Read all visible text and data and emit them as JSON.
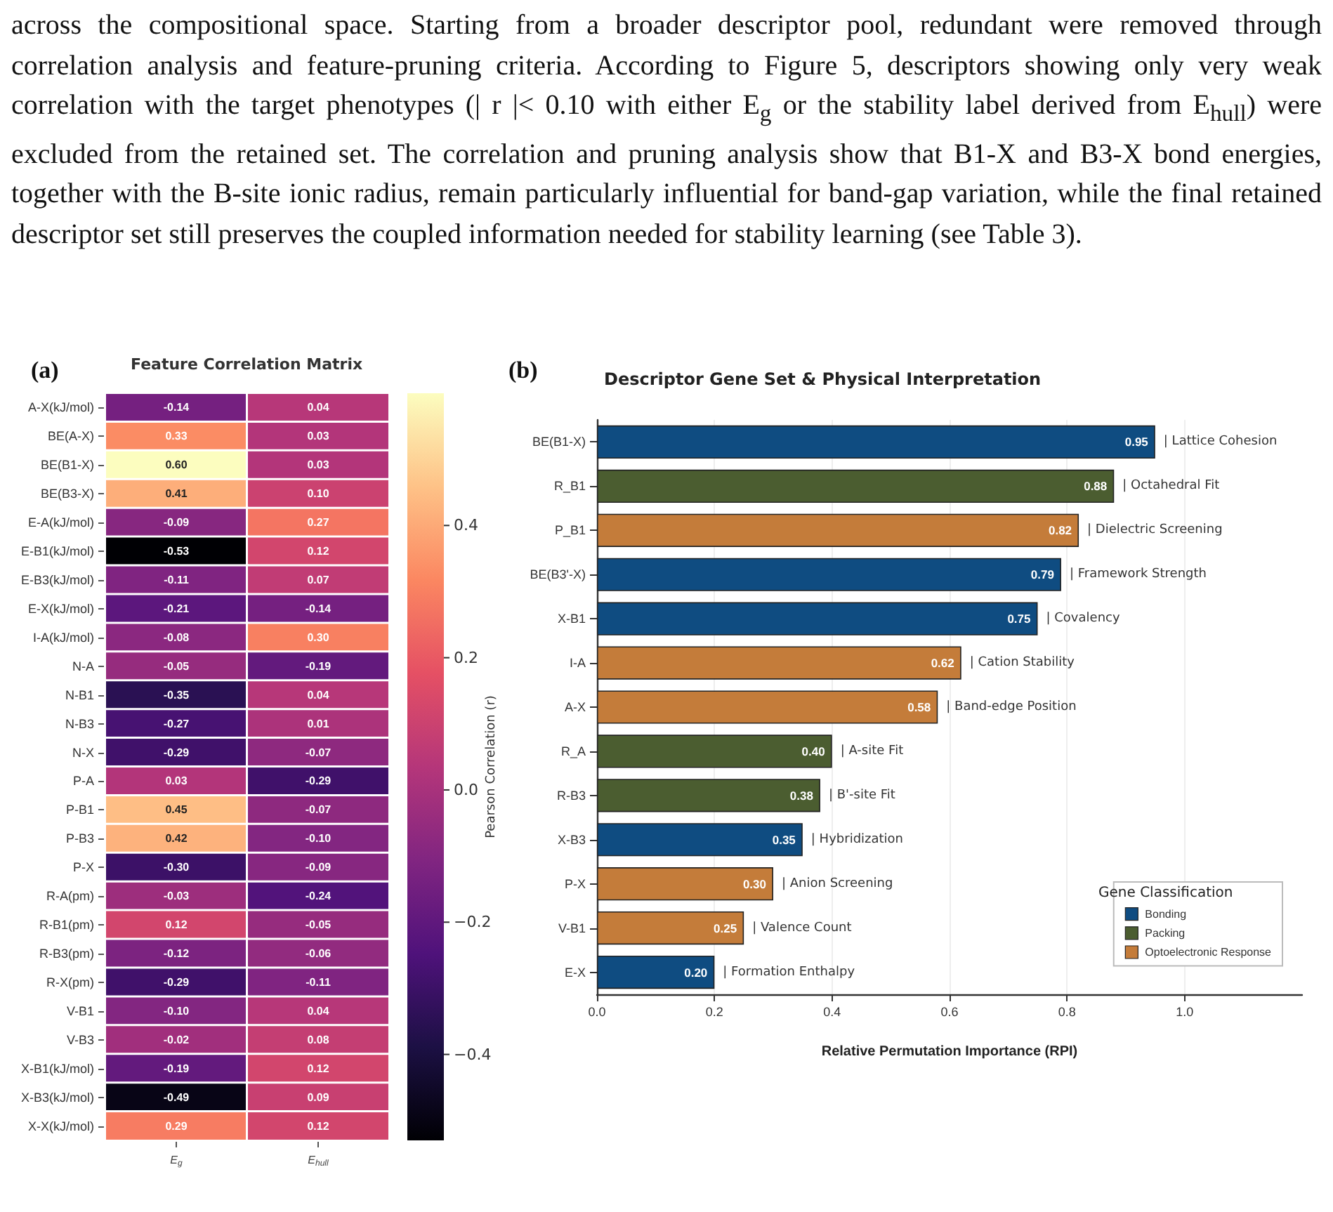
{
  "chart_data": [
    {
      "type": "heatmap",
      "title": "Feature Correlation Matrix",
      "annotations": [
        "across the compositional space. Starting from a broader descriptor pool, redundant were removed through correlation analysis and feature-pruning criteria. According to Figure 5, descriptors showing only very weak correlation with the target phenotypes (| r |< 0.10 with either E$_{g}$ or the stability label derived from E$_{hull}$) were excluded from the retained set. The correlation and pruning analysis show that B1-X and B3-X bond energies, together with the B-site ionic radius, remain particularly influential for band-gap variation, while the final retained descriptor set still preserves the coupled information needed for stability learning (see Table 3).",
        "(a)"
      ],
      "categories": [
        "E$_{g}$",
        "E$_{hull}$"
      ],
      "y_categories": [
        "A-X(kJ/mol)",
        "BE(A-X)",
        "BE(B1-X)",
        "BE(B3-X)",
        "E-A(kJ/mol)",
        "E-B1(kJ/mol)",
        "E-B3(kJ/mol)",
        "E-X(kJ/mol)",
        "I-A(kJ/mol)",
        "N-A",
        "N-B1",
        "N-B3",
        "N-X",
        "P-A",
        "P-B1",
        "P-B3",
        "P-X",
        "R-A(pm)",
        "R-B1(pm)",
        "R-B3(pm)",
        "R-X(pm)",
        "V-B1",
        "V-B3",
        "X-B1(kJ/mol)",
        "X-B3(kJ/mol)",
        "X-X(kJ/mol)"
      ],
      "cells": [
        [
          -0.14,
          0.04
        ],
        [
          0.33,
          0.03
        ],
        [
          0.6,
          0.03
        ],
        [
          0.41,
          0.1
        ],
        [
          -0.09,
          0.27
        ],
        [
          -0.53,
          0.12
        ],
        [
          -0.11,
          0.07
        ],
        [
          -0.21,
          -0.14
        ],
        [
          -0.08,
          0.3
        ],
        [
          -0.05,
          -0.19
        ],
        [
          -0.35,
          0.04
        ],
        [
          -0.27,
          0.01
        ],
        [
          -0.29,
          -0.07
        ],
        [
          0.03,
          -0.29
        ],
        [
          0.45,
          -0.07
        ],
        [
          0.42,
          -0.1
        ],
        [
          -0.3,
          -0.09
        ],
        [
          -0.03,
          -0.24
        ],
        [
          0.12,
          -0.05
        ],
        [
          -0.12,
          -0.06
        ],
        [
          -0.29,
          -0.11
        ],
        [
          -0.1,
          0.04
        ],
        [
          -0.02,
          0.08
        ],
        [
          -0.19,
          0.12
        ],
        [
          -0.49,
          0.09
        ],
        [
          0.29,
          0.12
        ]
      ],
      "cell_labels": [
        [
          "-0.14",
          "0.04"
        ],
        [
          "0.33",
          "0.03"
        ],
        [
          "0.60",
          "0.03"
        ],
        [
          "0.41",
          "0.10"
        ],
        [
          "-0.09",
          "0.27"
        ],
        [
          "-0.53",
          "0.12"
        ],
        [
          "-0.11",
          "0.07"
        ],
        [
          "-0.21",
          "-0.14"
        ],
        [
          "-0.08",
          "0.30"
        ],
        [
          "-0.05",
          "-0.19"
        ],
        [
          "-0.35",
          "0.04"
        ],
        [
          "-0.27",
          "0.01"
        ],
        [
          "-0.29",
          "-0.07"
        ],
        [
          "0.03",
          "-0.29"
        ],
        [
          "0.45",
          "-0.07"
        ],
        [
          "0.42",
          "-0.10"
        ],
        [
          "-0.30",
          "-0.09"
        ],
        [
          "-0.03",
          "-0.24"
        ],
        [
          "0.12",
          "-0.05"
        ],
        [
          "-0.12",
          "-0.06"
        ],
        [
          "-0.29",
          "-0.11"
        ],
        [
          "-0.10",
          "0.04"
        ],
        [
          "-0.02",
          "0.08"
        ],
        [
          "-0.19",
          "0.12"
        ],
        [
          "-0.49",
          "0.09"
        ],
        [
          "0.29",
          "0.12"
        ]
      ],
      "clabel": "Pearson Correlation (r)",
      "clim": [
        -0.53,
        0.6
      ],
      "cticks": [
        {
          "value": -0.4,
          "label": "−0.4"
        },
        {
          "value": -0.2,
          "label": "−0.2"
        },
        {
          "value": 0,
          "label": "0.0"
        },
        0.2,
        0.4
      ]
    },
    {
      "type": "bar",
      "orientation": "horizontal",
      "title": "Descriptor Gene Set & Physical Interpretation",
      "xlabel": "Relative Permutation Importance (RPI)",
      "legend_title": "Gene Classification",
      "legend": "bottom right",
      "categories": [
        "BE(B1-X)",
        "R_B1",
        "P_B1",
        "BE(B3'-X)",
        "X-B1",
        "I-A",
        "A-X",
        "R_A",
        "R-B3",
        "X-B3",
        "P-X",
        "V-B1",
        "E-X"
      ],
      "series": [
        {
          "name": "Bonding",
          "color": "#0f4c81",
          "values": [
            0.95,
            null,
            null,
            0.79,
            0.75,
            null,
            null,
            null,
            null,
            0.35,
            null,
            null,
            0.2
          ],
          "value_labels": [
            "0.95",
            null,
            null,
            "0.79",
            "0.75",
            null,
            null,
            null,
            null,
            "0.35",
            null,
            null,
            "0.20"
          ]
        },
        {
          "name": "Packing",
          "color": "#4b5d30",
          "values": [
            null,
            0.88,
            null,
            null,
            null,
            null,
            null,
            0.4,
            0.38,
            null,
            null,
            null,
            null
          ],
          "value_labels": [
            null,
            "0.88",
            null,
            null,
            null,
            null,
            null,
            "0.40",
            "0.38",
            null,
            null,
            null,
            null
          ]
        },
        {
          "name": "Optoelectronic Response",
          "color": "#c47c3a",
          "values": [
            null,
            null,
            0.82,
            null,
            null,
            0.62,
            0.58,
            null,
            null,
            null,
            0.3,
            0.25,
            null
          ],
          "value_labels": [
            null,
            null,
            "0.82",
            null,
            null,
            "0.62",
            "0.58",
            null,
            null,
            null,
            "0.30",
            "0.25",
            null
          ]
        }
      ],
      "xlim": [
        0,
        1.2
      ],
      "xticks": [
        {
          "value": 0,
          "label": "0.0"
        },
        0.2,
        0.4,
        0.6,
        0.8,
        {
          "value": 1.0,
          "label": "1.0"
        }
      ],
      "grid": "x",
      "annotations": [
        "(b)",
        {
          "text": "| Lattice Cohesion",
          "x": 0.95,
          "y": "BE(B1-X)"
        },
        {
          "text": "| Octahedral Fit",
          "x": 0.88,
          "y": "R_B1"
        },
        {
          "text": "| Dielectric Screening",
          "x": 0.82,
          "y": "P_B1"
        },
        {
          "text": "| Framework Strength",
          "x": 0.79,
          "y": "BE(B3'-X)"
        },
        {
          "text": "| Covalency",
          "x": 0.75,
          "y": "X-B1"
        },
        {
          "text": "| Cation Stability",
          "x": 0.62,
          "y": "I-A"
        },
        {
          "text": "| Band-edge Position",
          "x": 0.58,
          "y": "A-X"
        },
        {
          "text": "| A-site Fit",
          "x": 0.4,
          "y": "R_A"
        },
        {
          "text": "| B'-site Fit",
          "x": 0.38,
          "y": "R-B3"
        },
        {
          "text": "| Hybridization",
          "x": 0.35,
          "y": "X-B3"
        },
        {
          "text": "| Anion Screening",
          "x": 0.3,
          "y": "P-X"
        },
        {
          "text": "| Valence Count",
          "x": 0.25,
          "y": "V-B1"
        },
        {
          "text": "| Formation Enthalpy",
          "x": 0.2,
          "y": "E-X"
        }
      ]
    }
  ]
}
